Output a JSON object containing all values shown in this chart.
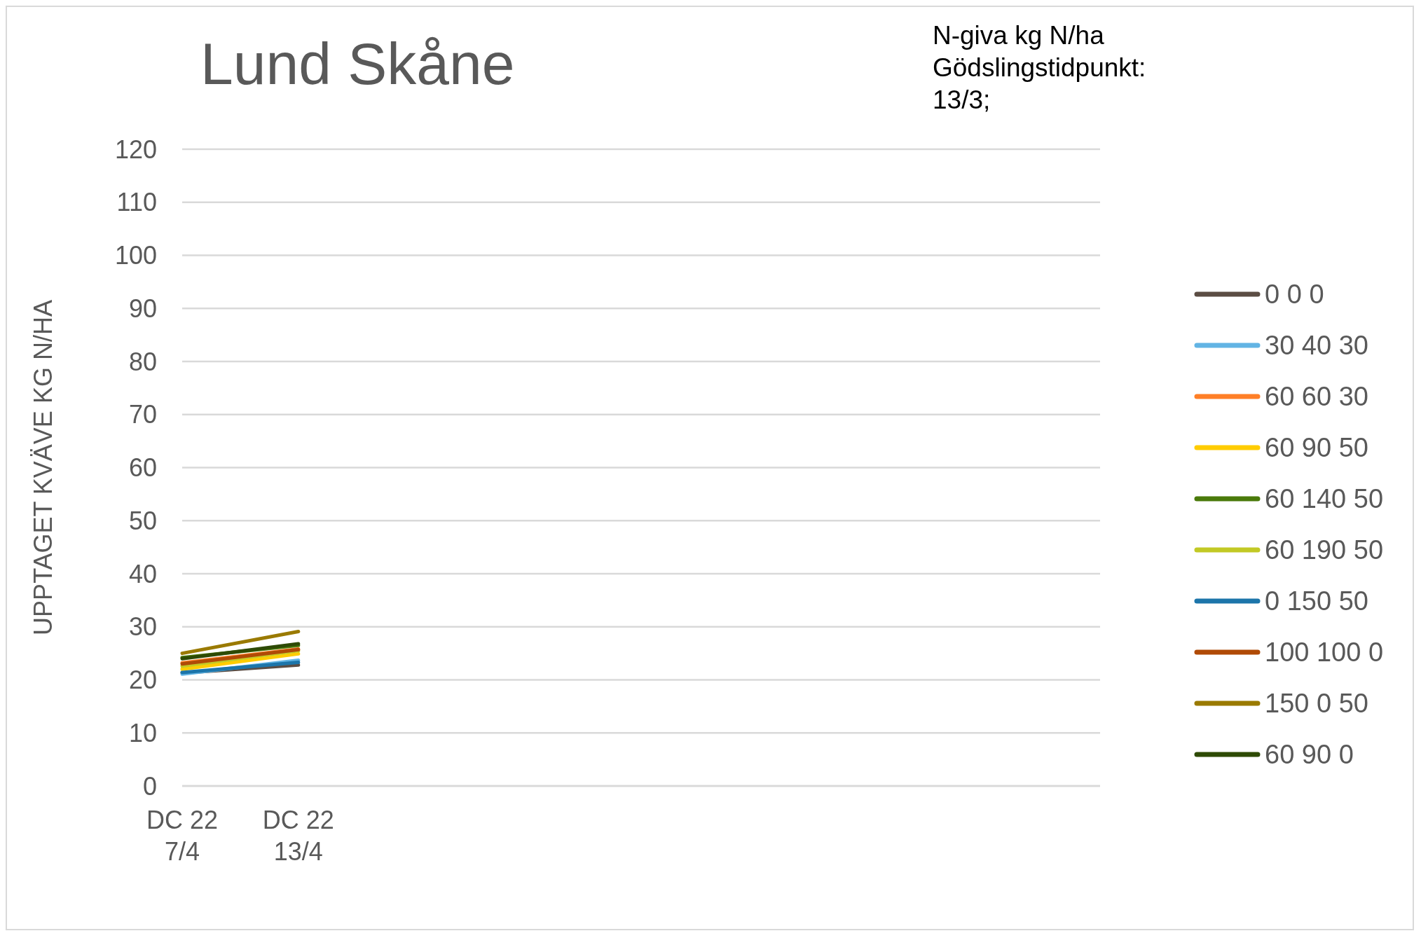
{
  "chart_data": {
    "type": "line",
    "title": "Lund Skåne",
    "ylabel": "UPPTAGET KVÄVE KG N/HA",
    "annotations": [
      "N-giva kg N/ha\nGödslingstidpunkt:\n13/3;"
    ],
    "categories": [
      "DC 22\n7/4",
      "DC 22\n13/4",
      null,
      null,
      null,
      null,
      null,
      null
    ],
    "series": [
      {
        "name": "0 0 0",
        "color": "#5b4d44",
        "values": [
          21.3,
          22.8,
          null,
          null,
          null,
          null,
          null,
          null
        ]
      },
      {
        "name": "30 40 30",
        "color": "#62b4e4",
        "values": [
          21.1,
          23.7,
          null,
          null,
          null,
          null,
          null,
          null
        ]
      },
      {
        "name": "60 60 30",
        "color": "#ff7f27",
        "values": [
          23.2,
          25.8,
          null,
          null,
          null,
          null,
          null,
          null
        ]
      },
      {
        "name": "60 90 50",
        "color": "#ffcc00",
        "values": [
          22.0,
          24.9,
          null,
          null,
          null,
          null,
          null,
          null
        ]
      },
      {
        "name": "60 140 50",
        "color": "#4a7a0a",
        "values": [
          24.2,
          26.5,
          null,
          null,
          null,
          null,
          null,
          null
        ]
      },
      {
        "name": "60 190 50",
        "color": "#c2c925",
        "values": [
          22.6,
          25.5,
          null,
          null,
          null,
          null,
          null,
          null
        ]
      },
      {
        "name": "0 150 50",
        "color": "#1c75aa",
        "values": [
          21.4,
          23.3,
          null,
          null,
          null,
          null,
          null,
          null
        ]
      },
      {
        "name": "100 100 0",
        "color": "#b04a06",
        "values": [
          23,
          25.7,
          null,
          null,
          null,
          null,
          null,
          null
        ]
      },
      {
        "name": "150 0 50",
        "color": "#9a7a00",
        "values": [
          25,
          29.1,
          null,
          null,
          null,
          null,
          null,
          null
        ]
      },
      {
        "name": "60 90 0",
        "color": "#2e4a05",
        "values": [
          24,
          26.8,
          null,
          null,
          null,
          null,
          null,
          null
        ]
      }
    ],
    "ylim": [
      0,
      120
    ],
    "yticks": [
      0,
      10,
      20,
      30,
      40,
      50,
      60,
      70,
      80,
      90,
      100,
      110,
      120
    ],
    "grid": "y",
    "legend": "right",
    "marker": "none",
    "line_style": "solid"
  }
}
